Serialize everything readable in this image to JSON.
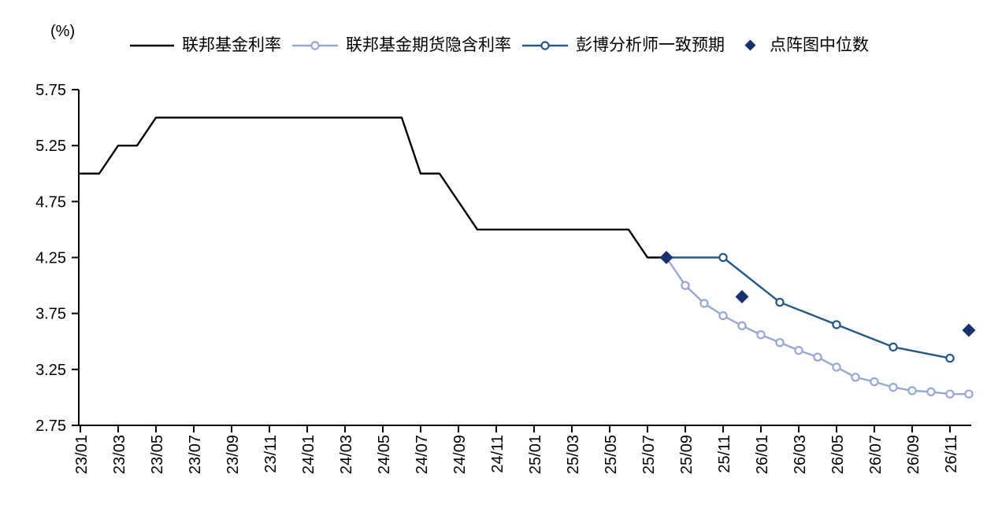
{
  "chart_data": {
    "type": "line",
    "title": "",
    "unit_label": "(%)",
    "grid": false,
    "legend": {
      "position": "top"
    },
    "y_axis": {
      "min": 2.75,
      "max": 5.75,
      "step": 0.5,
      "ticks": [
        "5.75",
        "5.25",
        "4.75",
        "4.25",
        "3.75",
        "3.25",
        "2.75"
      ]
    },
    "x_axis": {
      "range": [
        "23/01",
        "26/12"
      ],
      "tick_labels": [
        "23/01",
        "23/03",
        "23/05",
        "23/07",
        "23/09",
        "23/11",
        "24/01",
        "24/03",
        "24/05",
        "24/07",
        "24/09",
        "24/11",
        "25/01",
        "25/03",
        "25/05",
        "25/07",
        "25/09",
        "25/11",
        "26/01",
        "26/03",
        "26/05",
        "26/07",
        "26/09",
        "26/11"
      ]
    },
    "series": [
      {
        "name": "联邦基金利率",
        "type": "line",
        "color": "#000000",
        "marker": "none",
        "points": [
          [
            "23/01",
            5.0
          ],
          [
            "23/02",
            5.0
          ],
          [
            "23/03",
            5.25
          ],
          [
            "23/04",
            5.25
          ],
          [
            "23/05",
            5.5
          ],
          [
            "24/06",
            5.5
          ],
          [
            "24/07",
            5.0
          ],
          [
            "24/08",
            5.0
          ],
          [
            "24/09",
            4.75
          ],
          [
            "24/10",
            4.5
          ],
          [
            "25/06",
            4.5
          ],
          [
            "25/07",
            4.25
          ],
          [
            "25/08",
            4.25
          ]
        ]
      },
      {
        "name": "联邦基金期货隐含利率",
        "type": "line",
        "color": "#97A7D8",
        "marker": "circle",
        "marker_start": 1,
        "points": [
          [
            "25/08",
            4.25
          ],
          [
            "25/09",
            4.0
          ],
          [
            "25/10",
            3.84
          ],
          [
            "25/11",
            3.73
          ],
          [
            "25/12",
            3.64
          ],
          [
            "26/01",
            3.56
          ],
          [
            "26/02",
            3.49
          ],
          [
            "26/03",
            3.42
          ],
          [
            "26/04",
            3.36
          ],
          [
            "26/05",
            3.27
          ],
          [
            "26/06",
            3.18
          ],
          [
            "26/07",
            3.14
          ],
          [
            "26/08",
            3.09
          ],
          [
            "26/09",
            3.06
          ],
          [
            "26/10",
            3.05
          ],
          [
            "26/11",
            3.03
          ],
          [
            "26/12",
            3.03
          ]
        ]
      },
      {
        "name": "彭博分析师一致预期",
        "type": "line",
        "color": "#245889",
        "marker": "circle",
        "marker_start": 1,
        "points": [
          [
            "25/08",
            4.25
          ],
          [
            "25/11",
            4.25
          ],
          [
            "26/02",
            3.85
          ],
          [
            "26/05",
            3.65
          ],
          [
            "26/08",
            3.45
          ],
          [
            "26/11",
            3.35
          ]
        ]
      },
      {
        "name": "点阵图中位数",
        "type": "scatter",
        "color": "#17316E",
        "marker": "diamond",
        "points": [
          [
            "25/08",
            4.25
          ],
          [
            "25/12",
            3.9
          ],
          [
            "26/12",
            3.6
          ]
        ]
      }
    ]
  }
}
